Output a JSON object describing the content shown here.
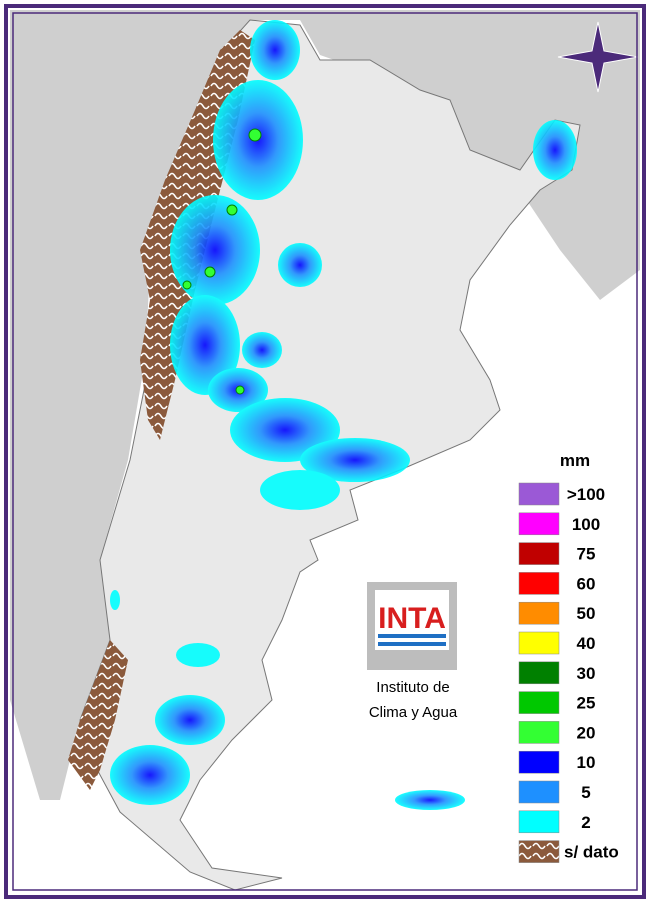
{
  "legend": {
    "title": "mm",
    "items": [
      {
        "label": ">100",
        "color": "#9b59d6"
      },
      {
        "label": "100",
        "color": "#ff00ff"
      },
      {
        "label": "75",
        "color": "#c00000"
      },
      {
        "label": "60",
        "color": "#ff0000"
      },
      {
        "label": "50",
        "color": "#ff8c00"
      },
      {
        "label": "40",
        "color": "#ffff00"
      },
      {
        "label": "30",
        "color": "#008000"
      },
      {
        "label": "25",
        "color": "#00c800"
      },
      {
        "label": "20",
        "color": "#33ff33"
      },
      {
        "label": "10",
        "color": "#0000ff"
      },
      {
        "label": "5",
        "color": "#1e90ff"
      },
      {
        "label": "2",
        "color": "#00ffff"
      },
      {
        "label": "s/ dato",
        "color": "#8b5a3c"
      }
    ]
  },
  "logo": {
    "text": "INTA",
    "line1": "Instituto de",
    "line2": "Clima y Agua"
  }
}
